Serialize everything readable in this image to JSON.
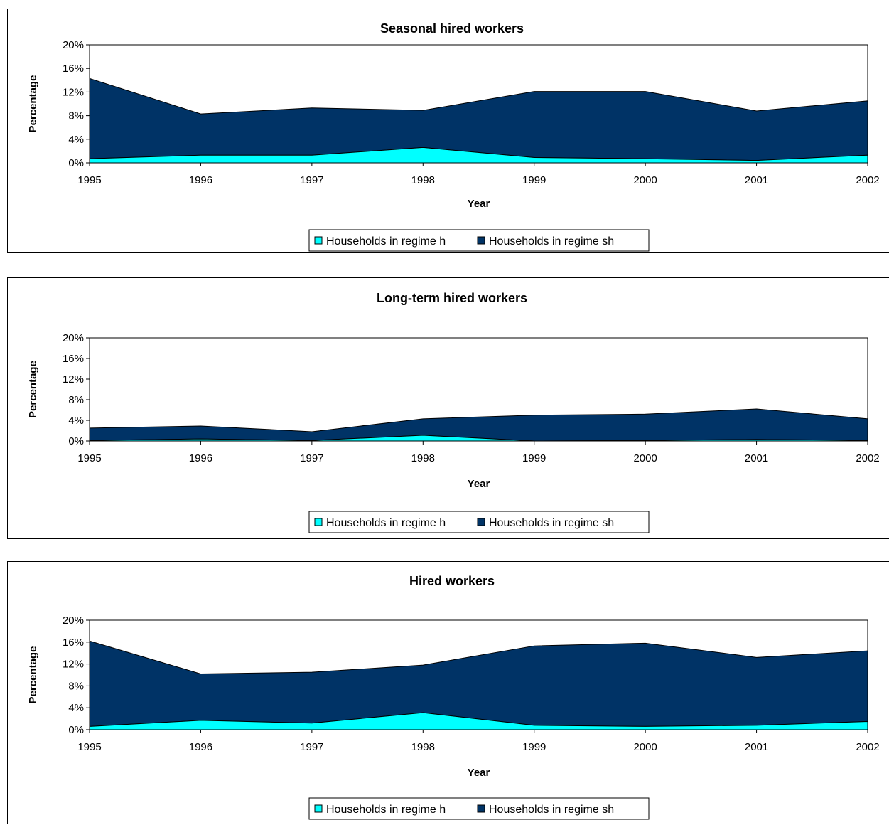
{
  "colors": {
    "regime_h": "#00FFFF",
    "regime_sh": "#003366",
    "line": "#000000"
  },
  "chart_data": [
    {
      "type": "area",
      "stacked": true,
      "title": "Seasonal hired workers",
      "xlabel": "Year",
      "ylabel": "Percentage",
      "categories": [
        "1995",
        "1996",
        "1997",
        "1998",
        "1999",
        "2000",
        "2001",
        "2002"
      ],
      "ylim": [
        0,
        20
      ],
      "y_ticks": [
        "0%",
        "4%",
        "8%",
        "12%",
        "16%",
        "20%"
      ],
      "grid": false,
      "legend_position": "bottom",
      "series": [
        {
          "name": "Households in regime h",
          "values": [
            0.7,
            1.3,
            1.3,
            2.6,
            0.9,
            0.7,
            0.4,
            1.3
          ]
        },
        {
          "name": "Households in regime sh",
          "values": [
            13.6,
            7.0,
            8.0,
            6.3,
            11.2,
            11.4,
            8.4,
            9.2
          ]
        }
      ]
    },
    {
      "type": "area",
      "stacked": true,
      "title": "Long-term hired workers",
      "xlabel": "Year",
      "ylabel": "Percentage",
      "categories": [
        "1995",
        "1996",
        "1997",
        "1998",
        "1999",
        "2000",
        "2001",
        "2002"
      ],
      "ylim": [
        0,
        20
      ],
      "y_ticks": [
        "0%",
        "4%",
        "8%",
        "12%",
        "16%",
        "20%"
      ],
      "grid": false,
      "legend_position": "bottom",
      "series": [
        {
          "name": "Households in regime h",
          "values": [
            0.1,
            0.4,
            0.1,
            1.1,
            0.0,
            0.1,
            0.3,
            0.1
          ]
        },
        {
          "name": "Households in regime sh",
          "values": [
            2.4,
            2.5,
            1.7,
            3.2,
            5.0,
            5.1,
            5.9,
            4.2
          ]
        }
      ]
    },
    {
      "type": "area",
      "stacked": true,
      "title": "Hired workers",
      "xlabel": "Year",
      "ylabel": "Percentage",
      "categories": [
        "1995",
        "1996",
        "1997",
        "1998",
        "1999",
        "2000",
        "2001",
        "2002"
      ],
      "ylim": [
        0,
        20
      ],
      "y_ticks": [
        "0%",
        "4%",
        "8%",
        "12%",
        "16%",
        "20%"
      ],
      "grid": false,
      "legend_position": "bottom",
      "series": [
        {
          "name": "Households in regime h",
          "values": [
            0.6,
            1.7,
            1.2,
            3.1,
            0.8,
            0.6,
            0.8,
            1.5
          ]
        },
        {
          "name": "Households in regime sh",
          "values": [
            15.6,
            8.5,
            9.3,
            8.7,
            14.5,
            15.2,
            12.4,
            12.9
          ]
        }
      ]
    }
  ]
}
